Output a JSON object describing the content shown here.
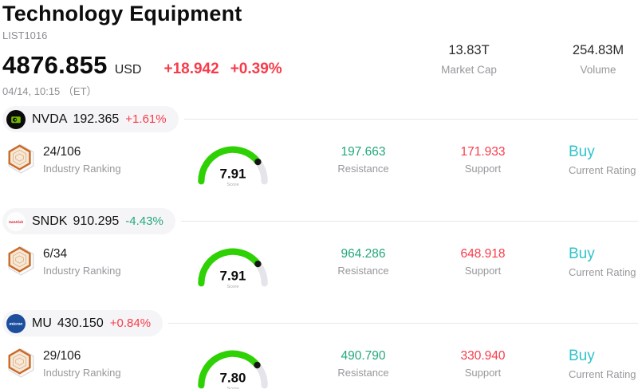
{
  "header": {
    "title": "Technology Equipment",
    "subtitle": "LIST1016",
    "price": "4876.855",
    "currency": "USD",
    "change_abs": "+18.942",
    "change_pct": "+0.39%",
    "timestamp": "04/14, 10:15 （ET）",
    "market_cap": {
      "value": "13.83T",
      "label": "Market Cap"
    },
    "volume": {
      "value": "254.83M",
      "label": "Volume"
    }
  },
  "labels": {
    "industry_ranking": "Industry Ranking",
    "score": "Score",
    "resistance": "Resistance",
    "support": "Support",
    "current_rating": "Current Rating"
  },
  "colors": {
    "up_red": "#f83b4a",
    "down_green": "#23a77d",
    "rating_cyan": "#2fc3c9",
    "gauge_green": "#2ed104",
    "gauge_track": "#e4e4ea"
  },
  "gauge_max": 10,
  "stocks": [
    {
      "ticker": "NVDA",
      "price": "192.365",
      "change": "+1.61%",
      "direction": "up",
      "logo": "nvidia-logo",
      "logo_text": "",
      "rank": "24/106",
      "score": "7.91",
      "score_value": 7.91,
      "resistance": "197.663",
      "support": "171.933",
      "rating": "Buy"
    },
    {
      "ticker": "SNDK",
      "price": "910.295",
      "change": "-4.43%",
      "direction": "down",
      "logo": "sandisk-logo",
      "logo_text": "SanDisk",
      "rank": "6/34",
      "score": "7.91",
      "score_value": 7.91,
      "resistance": "964.286",
      "support": "648.918",
      "rating": "Buy"
    },
    {
      "ticker": "MU",
      "price": "430.150",
      "change": "+0.84%",
      "direction": "up",
      "logo": "micron-logo",
      "logo_text": "micron",
      "rank": "29/106",
      "score": "7.80",
      "score_value": 7.8,
      "resistance": "490.790",
      "support": "330.940",
      "rating": "Buy"
    }
  ]
}
